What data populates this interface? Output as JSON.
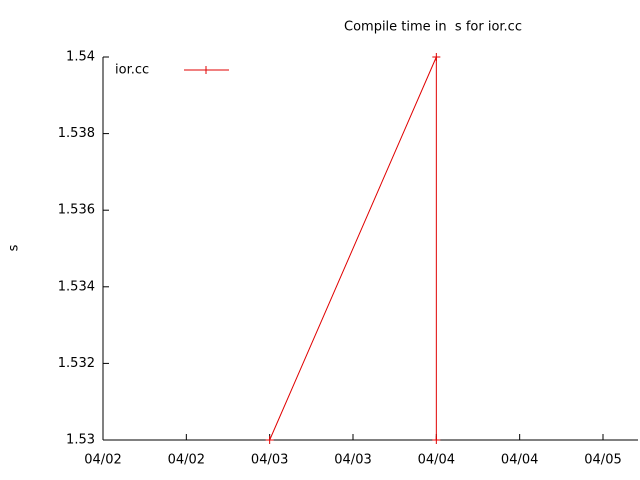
{
  "chart_data": {
    "type": "line",
    "title": "Compile time in  s for ior.cc",
    "y_label": "s",
    "x": [
      1,
      2,
      2
    ],
    "series": [
      {
        "name": "ior.cc",
        "color": "#e00000",
        "values": [
          1.53,
          1.54,
          1.53
        ]
      }
    ],
    "xlim": [
      0,
      3.21
    ],
    "xticks": [
      {
        "value": 0,
        "label": "04/02"
      },
      {
        "value": 0.5,
        "label": "04/02"
      },
      {
        "value": 1,
        "label": "04/03"
      },
      {
        "value": 1.5,
        "label": "04/03"
      },
      {
        "value": 2,
        "label": "04/04"
      },
      {
        "value": 2.5,
        "label": "04/04"
      },
      {
        "value": 3,
        "label": "04/05"
      }
    ],
    "ylim": [
      1.53,
      1.54
    ],
    "yticks": [
      1.53,
      1.532,
      1.534,
      1.536,
      1.538,
      1.54
    ],
    "legend": "top-left"
  }
}
